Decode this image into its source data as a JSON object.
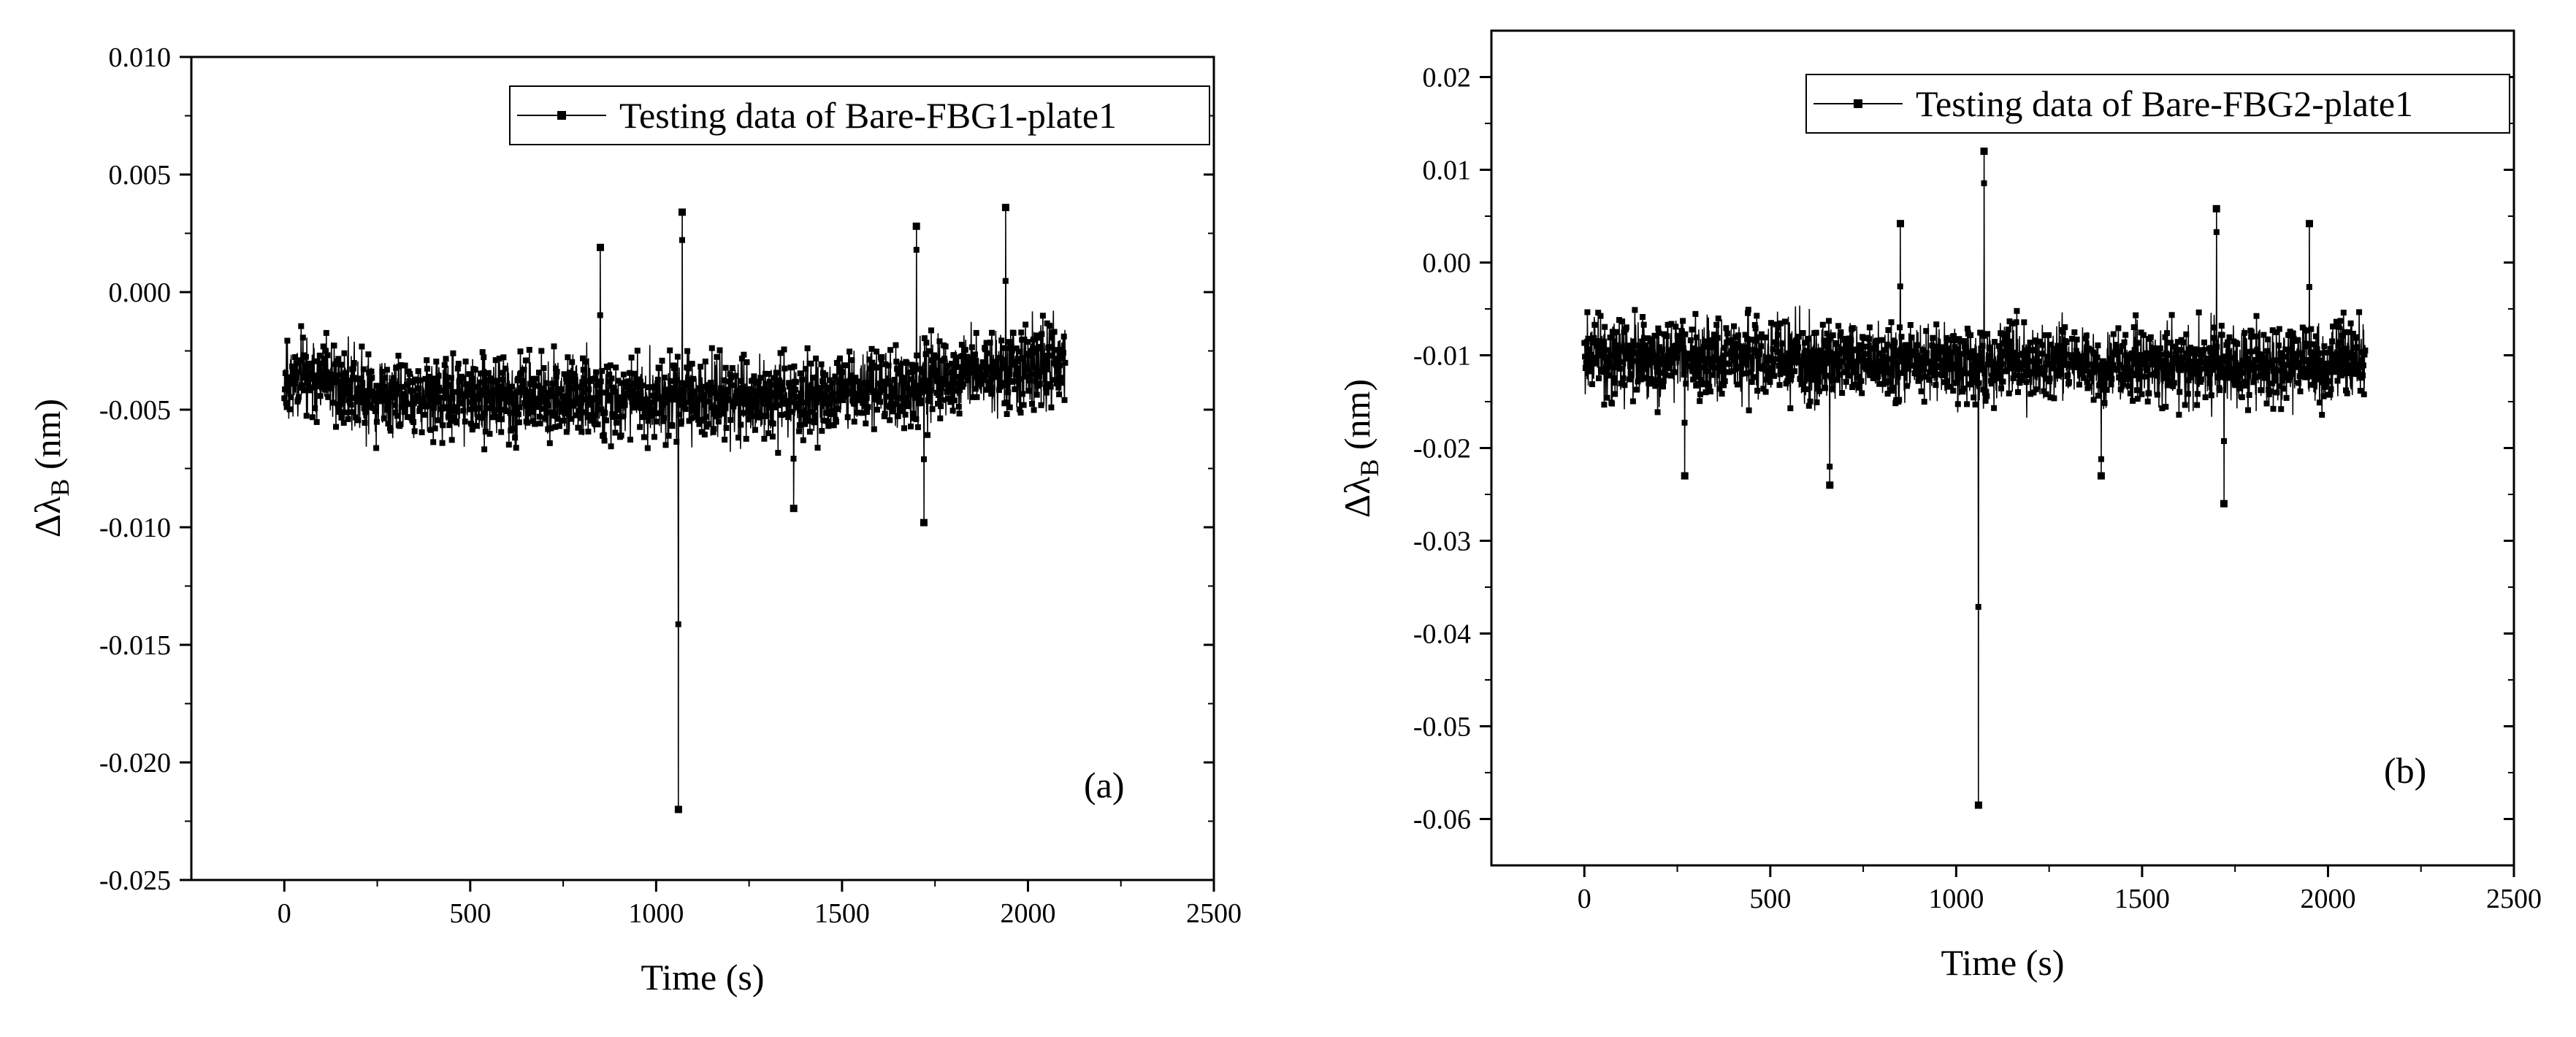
{
  "chart_data": [
    {
      "type": "line",
      "panel_label": "(a)",
      "xlabel": "Time (s)",
      "ylabel_prefix": "Δλ",
      "ylabel_sub": "B",
      "ylabel_suffix": " (nm)",
      "xlim": [
        -250,
        2500
      ],
      "ylim": [
        -0.025,
        0.01
      ],
      "xticks": [
        0,
        500,
        1000,
        1500,
        2000,
        2500
      ],
      "yticks": [
        -0.025,
        -0.02,
        -0.015,
        -0.01,
        -0.005,
        0.0,
        0.005,
        0.01
      ],
      "xtick_labels": [
        "0",
        "500",
        "1000",
        "1500",
        "2000",
        "2500"
      ],
      "ytick_labels": [
        "-0.025",
        "-0.020",
        "-0.015",
        "-0.010",
        "-0.005",
        "0.000",
        "0.005",
        "0.010"
      ],
      "legend": {
        "position": "top-right",
        "entries": [
          "Testing data of Bare-FBG1-plate1"
        ]
      },
      "series": [
        {
          "name": "Testing data of Bare-FBG1-plate1",
          "x_range": [
            0,
            2100
          ],
          "baseline_trend": [
            [
              0,
              -0.0035
            ],
            [
              300,
              -0.0045
            ],
            [
              1000,
              -0.0045
            ],
            [
              1400,
              -0.0045
            ],
            [
              2100,
              -0.003
            ]
          ],
          "noise_amplitude": 0.0012,
          "spikes": [
            [
              1060,
              -0.022
            ],
            [
              1070,
              0.0034
            ],
            [
              1700,
              0.0028
            ],
            [
              1940,
              0.0036
            ],
            [
              850,
              0.0019
            ],
            [
              1370,
              -0.0092
            ],
            [
              1720,
              -0.0098
            ]
          ]
        }
      ]
    },
    {
      "type": "line",
      "panel_label": "(b)",
      "xlabel": "Time (s)",
      "ylabel_prefix": "Δλ",
      "ylabel_sub": "B",
      "ylabel_suffix": " (nm)",
      "xlim": [
        -250,
        2500
      ],
      "ylim": [
        -0.065,
        0.025
      ],
      "xticks": [
        0,
        500,
        1000,
        1500,
        2000,
        2500
      ],
      "yticks": [
        -0.06,
        -0.05,
        -0.04,
        -0.03,
        -0.02,
        -0.01,
        0.0,
        0.01,
        0.02
      ],
      "xtick_labels": [
        "0",
        "500",
        "1000",
        "1500",
        "2000",
        "2500"
      ],
      "ytick_labels": [
        "-0.06",
        "-0.05",
        "-0.04",
        "-0.03",
        "-0.02",
        "-0.01",
        "0.00",
        "0.01",
        "0.02"
      ],
      "legend": {
        "position": "top-right",
        "entries": [
          "Testing data of Bare-FBG2-plate1"
        ]
      },
      "series": [
        {
          "name": "Testing data of Bare-FBG2-plate1",
          "x_range": [
            0,
            2100
          ],
          "baseline_trend": [
            [
              0,
              -0.01
            ],
            [
              1000,
              -0.011
            ],
            [
              2100,
              -0.011
            ]
          ],
          "noise_amplitude": 0.003,
          "spikes": [
            [
              1060,
              -0.0585
            ],
            [
              1075,
              0.012
            ],
            [
              1700,
              0.0058
            ],
            [
              1950,
              0.0042
            ],
            [
              850,
              0.0042
            ],
            [
              660,
              -0.024
            ],
            [
              1390,
              -0.023
            ],
            [
              1720,
              -0.026
            ],
            [
              270,
              -0.023
            ]
          ]
        }
      ]
    }
  ]
}
